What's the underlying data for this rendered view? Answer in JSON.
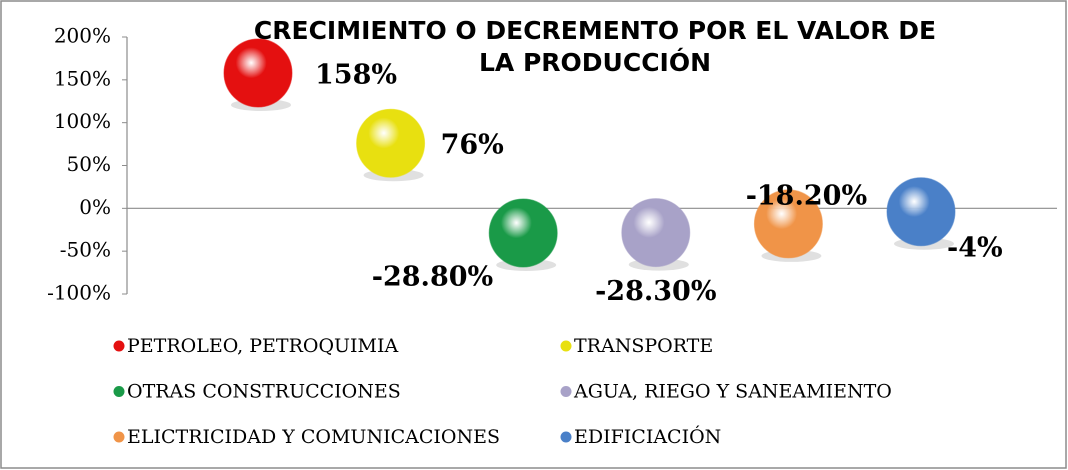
{
  "chart_data": {
    "type": "bubble",
    "title": [
      "CRECIMIENTO O DECREMENTO POR EL VALOR DE",
      "LA PRODUCCIÓN"
    ],
    "ylim": [
      -100,
      200
    ],
    "yticks": [
      {
        "value": -100,
        "label": "-100%"
      },
      {
        "value": -50,
        "label": "-50%"
      },
      {
        "value": 0,
        "label": "0%"
      },
      {
        "value": 50,
        "label": "50%"
      },
      {
        "value": 100,
        "label": "100%"
      },
      {
        "value": 150,
        "label": "150%"
      },
      {
        "value": 200,
        "label": "200%"
      }
    ],
    "grid": false,
    "legend": "bottom",
    "series": [
      {
        "name": "PETROLEO, PETROQUIMIA",
        "color": "#e41010",
        "values": [
          158
        ],
        "value_labels": [
          "158%"
        ]
      },
      {
        "name": "TRANSPORTE",
        "color": "#e8e010",
        "values": [
          76
        ],
        "value_labels": [
          "76%"
        ]
      },
      {
        "name": "OTRAS CONSTRUCCIONES",
        "color": "#1a9a48",
        "values": [
          -28.8
        ],
        "value_labels": [
          "-28.80%"
        ]
      },
      {
        "name": "AGUA, RIEGO Y SANEAMIENTO",
        "color": "#a8a2c8",
        "values": [
          -28.3
        ],
        "value_labels": [
          "-28.30%"
        ]
      },
      {
        "name": "ELICTRICIDAD Y COMUNICACIONES",
        "color": "#f09448",
        "values": [
          -18.2
        ],
        "value_labels": [
          "-18.20%"
        ]
      },
      {
        "name": "EDIFICIACIÓN",
        "color": "#4a80c8",
        "values": [
          -4
        ],
        "value_labels": [
          "-4%"
        ]
      }
    ]
  }
}
